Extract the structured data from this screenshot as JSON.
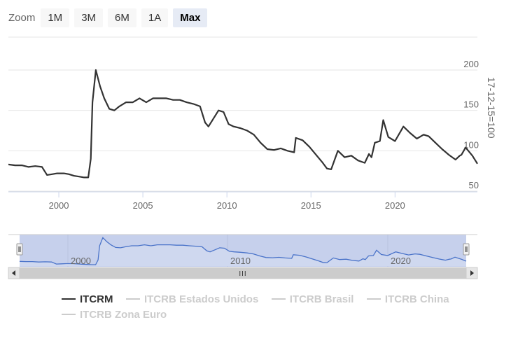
{
  "zoom": {
    "label": "Zoom",
    "buttons": [
      {
        "label": "1M",
        "active": false
      },
      {
        "label": "3M",
        "active": false
      },
      {
        "label": "6M",
        "active": false
      },
      {
        "label": "1A",
        "active": false
      },
      {
        "label": "Max",
        "active": true
      }
    ]
  },
  "legend": [
    {
      "label": "ITCRM",
      "visible": true
    },
    {
      "label": "ITCRB Estados Unidos",
      "visible": false
    },
    {
      "label": "ITCRB Brasil",
      "visible": false
    },
    {
      "label": "ITCRB China",
      "visible": false
    },
    {
      "label": "ITCRB Zona Euro",
      "visible": false
    }
  ],
  "navigator": {
    "tick_labels": [
      "2000",
      "2010",
      "2020"
    ],
    "handle_grip": "III"
  },
  "colors": {
    "series": "#333333",
    "navigator_line": "#4a73c9",
    "navigator_fill": "#cfd8ef",
    "navigator_mask": "#c6d0ec",
    "grid": "#e6e6e6"
  },
  "chart_data": {
    "type": "line",
    "title": "",
    "xlabel": "",
    "ylabel": "17-12-15=100",
    "xlim": [
      1997.0,
      2024.9
    ],
    "ylim": [
      50,
      200
    ],
    "x_ticks": [
      2000,
      2005,
      2010,
      2015,
      2020
    ],
    "x_tick_labels": [
      "2000",
      "2005",
      "2010",
      "2015",
      "2020"
    ],
    "y_ticks": [
      50,
      100,
      150,
      200
    ],
    "y_tick_labels": [
      "50",
      "100",
      "150",
      "200"
    ],
    "grid": true,
    "y_axis_position": "right",
    "series": [
      {
        "name": "ITCRM",
        "x": [
          1997.0,
          1997.4,
          1997.8,
          1998.2,
          1998.6,
          1999.0,
          1999.3,
          1999.6,
          1999.9,
          2000.3,
          2000.6,
          2000.9,
          2001.2,
          2001.5,
          2001.75,
          2001.9,
          2002.0,
          2002.2,
          2002.45,
          2002.7,
          2003.0,
          2003.3,
          2003.6,
          2004.0,
          2004.4,
          2004.8,
          2005.2,
          2005.6,
          2006.0,
          2006.4,
          2006.8,
          2007.2,
          2007.6,
          2008.0,
          2008.4,
          2008.7,
          2008.9,
          2009.2,
          2009.5,
          2009.8,
          2010.1,
          2010.4,
          2010.8,
          2011.2,
          2011.6,
          2012.0,
          2012.4,
          2012.8,
          2013.2,
          2013.6,
          2014.0,
          2014.1,
          2014.5,
          2014.9,
          2015.3,
          2015.7,
          2015.95,
          2016.2,
          2016.6,
          2017.0,
          2017.4,
          2017.8,
          2018.2,
          2018.45,
          2018.6,
          2018.8,
          2019.1,
          2019.3,
          2019.6,
          2020.0,
          2020.5,
          2020.9,
          2021.3,
          2021.7,
          2022.0,
          2022.4,
          2022.8,
          2023.2,
          2023.6,
          2023.75,
          2023.85,
          2023.95,
          2024.2,
          2024.6,
          2024.9
        ],
        "y": [
          83,
          82,
          82,
          80,
          81,
          80,
          70,
          71,
          72,
          72,
          71,
          69,
          68,
          67,
          67,
          90,
          160,
          200,
          180,
          165,
          152,
          150,
          155,
          160,
          160,
          165,
          160,
          165,
          165,
          165,
          163,
          163,
          160,
          158,
          155,
          135,
          130,
          140,
          150,
          148,
          133,
          130,
          128,
          125,
          120,
          110,
          102,
          101,
          103,
          100,
          98,
          116,
          113,
          105,
          95,
          85,
          78,
          77,
          100,
          92,
          94,
          88,
          85,
          96,
          92,
          110,
          112,
          138,
          117,
          112,
          130,
          122,
          115,
          120,
          118,
          110,
          102,
          95,
          89,
          92,
          94,
          95,
          104,
          94,
          84
        ]
      }
    ]
  }
}
